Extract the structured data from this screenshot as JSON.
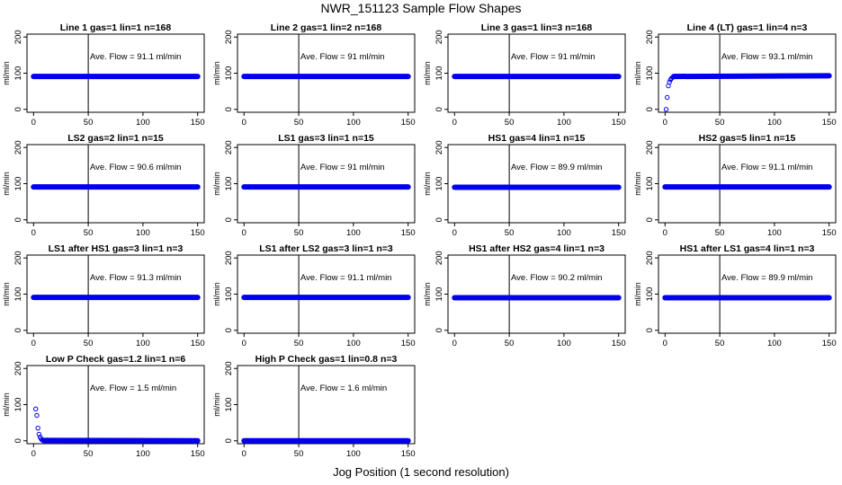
{
  "figure": {
    "title": "NWR_151123  Sample Flow Shapes",
    "xlabel": "Jog Position (1 second resolution)"
  },
  "style": {
    "point_color": "#0000ee",
    "axis_color": "#000000"
  },
  "chart_data": [
    {
      "type": "scatter",
      "title": "Line 1 gas=1 lin=1 n=168",
      "annotation": "Ave. Flow = 91.1  ml/min",
      "xlim": [
        0,
        150
      ],
      "ylim": [
        0,
        200
      ],
      "xticks": [
        0,
        50,
        100,
        150
      ],
      "yticks": [
        0,
        100,
        200
      ],
      "ylabel": "ml/min",
      "refline_x": 50,
      "series": [
        {
          "x": [
            0,
            150
          ],
          "y": [
            91,
            91
          ]
        }
      ]
    },
    {
      "type": "scatter",
      "title": "Line 2 gas=1 lin=2 n=168",
      "annotation": "Ave. Flow = 91  ml/min",
      "xlim": [
        0,
        150
      ],
      "ylim": [
        0,
        200
      ],
      "xticks": [
        0,
        50,
        100,
        150
      ],
      "yticks": [
        0,
        100,
        200
      ],
      "ylabel": "ml/min",
      "refline_x": 50,
      "series": [
        {
          "x": [
            0,
            150
          ],
          "y": [
            91,
            91
          ]
        }
      ]
    },
    {
      "type": "scatter",
      "title": "Line 3 gas=1 lin=3 n=168",
      "annotation": "Ave. Flow = 91  ml/min",
      "xlim": [
        0,
        150
      ],
      "ylim": [
        0,
        200
      ],
      "xticks": [
        0,
        50,
        100,
        150
      ],
      "yticks": [
        0,
        100,
        200
      ],
      "ylabel": "ml/min",
      "refline_x": 50,
      "series": [
        {
          "x": [
            0,
            150
          ],
          "y": [
            91,
            91
          ]
        }
      ]
    },
    {
      "type": "scatter",
      "title": "Line 4 (LT) gas=1 lin=4 n=3",
      "annotation": "Ave. Flow = 93.1  ml/min",
      "xlim": [
        0,
        150
      ],
      "ylim": [
        0,
        200
      ],
      "xticks": [
        0,
        50,
        100,
        150
      ],
      "yticks": [
        0,
        100,
        200
      ],
      "ylabel": "ml/min",
      "refline_x": 50,
      "series": [
        {
          "x": [
            1,
            2,
            3,
            4,
            5,
            6,
            7,
            8,
            150
          ],
          "y": [
            0,
            33,
            65,
            75,
            82,
            86,
            89,
            91,
            93
          ]
        }
      ]
    },
    {
      "type": "scatter",
      "title": "LS2 gas=2 lin=1 n=15",
      "annotation": "Ave. Flow = 90.6  ml/min",
      "xlim": [
        0,
        150
      ],
      "ylim": [
        0,
        200
      ],
      "xticks": [
        0,
        50,
        100,
        150
      ],
      "yticks": [
        0,
        100,
        200
      ],
      "ylabel": "ml/min",
      "refline_x": 50,
      "series": [
        {
          "x": [
            0,
            150
          ],
          "y": [
            91,
            91
          ]
        }
      ]
    },
    {
      "type": "scatter",
      "title": "LS1 gas=3 lin=1 n=15",
      "annotation": "Ave. Flow = 91  ml/min",
      "xlim": [
        0,
        150
      ],
      "ylim": [
        0,
        200
      ],
      "xticks": [
        0,
        50,
        100,
        150
      ],
      "yticks": [
        0,
        100,
        200
      ],
      "ylabel": "ml/min",
      "refline_x": 50,
      "series": [
        {
          "x": [
            0,
            150
          ],
          "y": [
            91,
            91
          ]
        }
      ]
    },
    {
      "type": "scatter",
      "title": "HS1 gas=4 lin=1 n=15",
      "annotation": "Ave. Flow = 89.9  ml/min",
      "xlim": [
        0,
        150
      ],
      "ylim": [
        0,
        200
      ],
      "xticks": [
        0,
        50,
        100,
        150
      ],
      "yticks": [
        0,
        100,
        200
      ],
      "ylabel": "ml/min",
      "refline_x": 50,
      "series": [
        {
          "x": [
            0,
            150
          ],
          "y": [
            90,
            90
          ]
        }
      ]
    },
    {
      "type": "scatter",
      "title": "HS2 gas=5 lin=1 n=15",
      "annotation": "Ave. Flow = 91.1  ml/min",
      "xlim": [
        0,
        150
      ],
      "ylim": [
        0,
        200
      ],
      "xticks": [
        0,
        50,
        100,
        150
      ],
      "yticks": [
        0,
        100,
        200
      ],
      "ylabel": "ml/min",
      "refline_x": 50,
      "series": [
        {
          "x": [
            0,
            150
          ],
          "y": [
            91,
            91
          ]
        }
      ]
    },
    {
      "type": "scatter",
      "title": "LS1 after HS1 gas=3 lin=1 n=3",
      "annotation": "Ave. Flow = 91.3  ml/min",
      "xlim": [
        0,
        150
      ],
      "ylim": [
        0,
        200
      ],
      "xticks": [
        0,
        50,
        100,
        150
      ],
      "yticks": [
        0,
        100,
        200
      ],
      "ylabel": "ml/min",
      "refline_x": 50,
      "series": [
        {
          "x": [
            0,
            150
          ],
          "y": [
            91,
            91
          ]
        }
      ]
    },
    {
      "type": "scatter",
      "title": "LS1 after LS2 gas=3 lin=1 n=3",
      "annotation": "Ave. Flow = 91.1  ml/min",
      "xlim": [
        0,
        150
      ],
      "ylim": [
        0,
        200
      ],
      "xticks": [
        0,
        50,
        100,
        150
      ],
      "yticks": [
        0,
        100,
        200
      ],
      "ylabel": "ml/min",
      "refline_x": 50,
      "series": [
        {
          "x": [
            0,
            150
          ],
          "y": [
            91,
            91
          ]
        }
      ]
    },
    {
      "type": "scatter",
      "title": "HS1 after HS2 gas=4 lin=1 n=3",
      "annotation": "Ave. Flow = 90.2  ml/min",
      "xlim": [
        0,
        150
      ],
      "ylim": [
        0,
        200
      ],
      "xticks": [
        0,
        50,
        100,
        150
      ],
      "yticks": [
        0,
        100,
        200
      ],
      "ylabel": "ml/min",
      "refline_x": 50,
      "series": [
        {
          "x": [
            0,
            150
          ],
          "y": [
            90,
            90
          ]
        }
      ]
    },
    {
      "type": "scatter",
      "title": "HS1 after LS1 gas=4 lin=1 n=3",
      "annotation": "Ave. Flow = 89.9  ml/min",
      "xlim": [
        0,
        150
      ],
      "ylim": [
        0,
        200
      ],
      "xticks": [
        0,
        50,
        100,
        150
      ],
      "yticks": [
        0,
        100,
        200
      ],
      "ylabel": "ml/min",
      "refline_x": 50,
      "series": [
        {
          "x": [
            0,
            150
          ],
          "y": [
            90,
            90
          ]
        }
      ]
    },
    {
      "type": "scatter",
      "title": "Low P Check gas=1.2 lin=1 n=6",
      "annotation": "Ave. Flow = 1.5  ml/min",
      "xlim": [
        0,
        150
      ],
      "ylim": [
        0,
        200
      ],
      "xticks": [
        0,
        50,
        100,
        150
      ],
      "yticks": [
        0,
        100,
        200
      ],
      "ylabel": "ml/min",
      "refline_x": 50,
      "series": [
        {
          "x": [
            2,
            3,
            4,
            5,
            6,
            7,
            8,
            9,
            150
          ],
          "y": [
            88,
            70,
            35,
            18,
            10,
            5,
            2,
            1,
            0
          ]
        }
      ]
    },
    {
      "type": "scatter",
      "title": "High P Check gas=1 lin=0.8 n=3",
      "annotation": "Ave. Flow = 1.6  ml/min",
      "xlim": [
        0,
        150
      ],
      "ylim": [
        0,
        200
      ],
      "xticks": [
        0,
        50,
        100,
        150
      ],
      "yticks": [
        0,
        100,
        200
      ],
      "ylabel": "ml/min",
      "refline_x": 50,
      "series": [
        {
          "x": [
            0,
            150
          ],
          "y": [
            0,
            0
          ]
        }
      ]
    }
  ]
}
